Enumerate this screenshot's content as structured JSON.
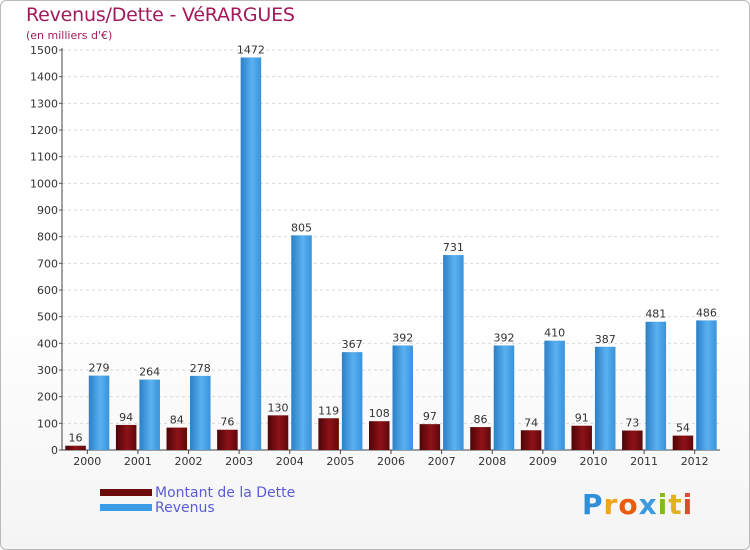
{
  "title": "Revenus/Dette - VéRARGUES",
  "subtitle": "(en milliers d'€)",
  "chart_data": {
    "type": "bar",
    "title": "Revenus/Dette - VéRARGUES",
    "ylabel": "(en milliers d'€)",
    "xlabel": "",
    "ylim": [
      0,
      1500
    ],
    "yticks": [
      0,
      100,
      200,
      300,
      400,
      500,
      600,
      700,
      800,
      900,
      1000,
      1100,
      1200,
      1300,
      1400,
      1500
    ],
    "grid": true,
    "categories": [
      "2000",
      "2001",
      "2002",
      "2003",
      "2004",
      "2005",
      "2006",
      "2007",
      "2008",
      "2009",
      "2010",
      "2011",
      "2012"
    ],
    "series": [
      {
        "name": "Montant de la Dette",
        "color": "#7a0d14",
        "values": [
          16,
          94,
          84,
          76,
          130,
          119,
          108,
          97,
          86,
          74,
          91,
          73,
          54
        ]
      },
      {
        "name": "Revenus",
        "color": "#3d9be0",
        "values": [
          279,
          264,
          278,
          1472,
          805,
          367,
          392,
          731,
          392,
          410,
          387,
          481,
          486
        ]
      }
    ],
    "legend_position": "bottom-left"
  },
  "legend": {
    "items": [
      {
        "label": "Montant de la Dette",
        "color": "#6b0a0a"
      },
      {
        "label": "Revenus",
        "color": "#3a9be6"
      }
    ]
  },
  "logo": {
    "letters": [
      "P",
      "r",
      "o",
      "x",
      "i",
      "t",
      "i"
    ],
    "colors": [
      "#2f8fd8",
      "#f2a51a",
      "#e85c0c",
      "#3d9be0",
      "#86b820",
      "#e2b11c",
      "#e04b2f"
    ]
  }
}
